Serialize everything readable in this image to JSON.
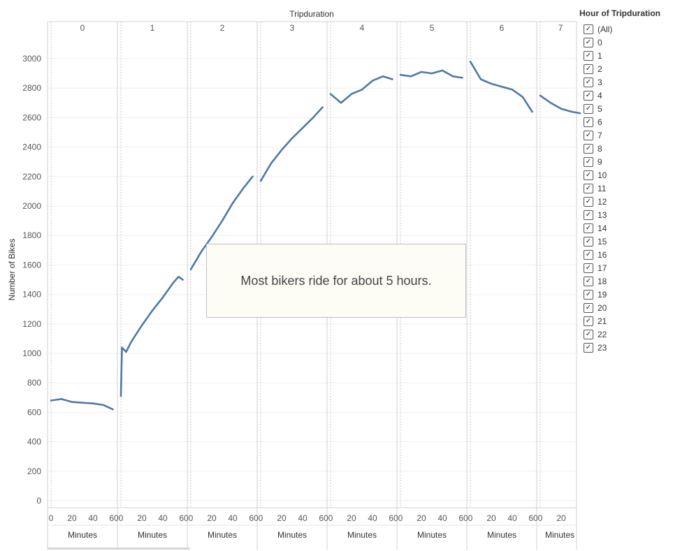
{
  "chart_data": {
    "type": "line",
    "title": "Tripduration",
    "ylabel": "Number of Bikes",
    "xlabel": "Minutes",
    "ylim": [
      0,
      3100
    ],
    "yticks": [
      0,
      200,
      400,
      600,
      800,
      1000,
      1200,
      1400,
      1600,
      1800,
      2000,
      2200,
      2400,
      2600,
      2800,
      3000
    ],
    "panels": [
      "0",
      "1",
      "2",
      "3",
      "4",
      "5",
      "6",
      "7"
    ],
    "xticks": [
      "0",
      "20",
      "40",
      "60"
    ],
    "last_panel_xticks": [
      "0",
      "20"
    ],
    "xlabels": [
      "Minutes",
      "Minutes",
      "Minutes",
      "Minutes",
      "Minutes",
      "Minutes",
      "Minutes",
      "Minutes"
    ],
    "series_color": "#4e79a7",
    "series": [
      {
        "panel": "0",
        "x": [
          0,
          10,
          20,
          30,
          40,
          50,
          59
        ],
        "y": [
          680,
          690,
          670,
          665,
          660,
          650,
          620
        ]
      },
      {
        "panel": "1",
        "x": [
          0,
          1,
          5,
          10,
          20,
          30,
          40,
          50,
          55,
          59
        ],
        "y": [
          710,
          1040,
          1010,
          1080,
          1190,
          1290,
          1380,
          1480,
          1520,
          1500
        ]
      },
      {
        "panel": "2",
        "x": [
          0,
          10,
          20,
          30,
          40,
          50,
          59
        ],
        "y": [
          1570,
          1690,
          1790,
          1900,
          2020,
          2120,
          2200
        ]
      },
      {
        "panel": "3",
        "x": [
          0,
          10,
          20,
          30,
          40,
          50,
          59
        ],
        "y": [
          2170,
          2290,
          2380,
          2460,
          2530,
          2600,
          2670
        ]
      },
      {
        "panel": "4",
        "x": [
          0,
          10,
          20,
          30,
          40,
          50,
          59
        ],
        "y": [
          2760,
          2700,
          2760,
          2790,
          2850,
          2880,
          2860
        ]
      },
      {
        "panel": "5",
        "x": [
          0,
          10,
          20,
          30,
          40,
          50,
          59
        ],
        "y": [
          2890,
          2880,
          2910,
          2900,
          2920,
          2880,
          2870
        ]
      },
      {
        "panel": "6",
        "x": [
          0,
          10,
          20,
          30,
          40,
          50,
          59
        ],
        "y": [
          2980,
          2860,
          2830,
          2810,
          2790,
          2740,
          2640
        ]
      },
      {
        "panel": "7",
        "x": [
          0,
          10,
          20,
          30,
          38
        ],
        "y": [
          2750,
          2700,
          2660,
          2640,
          2630
        ]
      }
    ]
  },
  "annotation": "Most bikers ride for about 5 hours.",
  "legend": {
    "title": "Hour of Tripduration",
    "items": [
      "(All)",
      "0",
      "1",
      "2",
      "3",
      "4",
      "5",
      "6",
      "7",
      "8",
      "9",
      "10",
      "11",
      "12",
      "13",
      "14",
      "15",
      "16",
      "17",
      "18",
      "19",
      "20",
      "21",
      "22",
      "23"
    ],
    "checked": true
  }
}
